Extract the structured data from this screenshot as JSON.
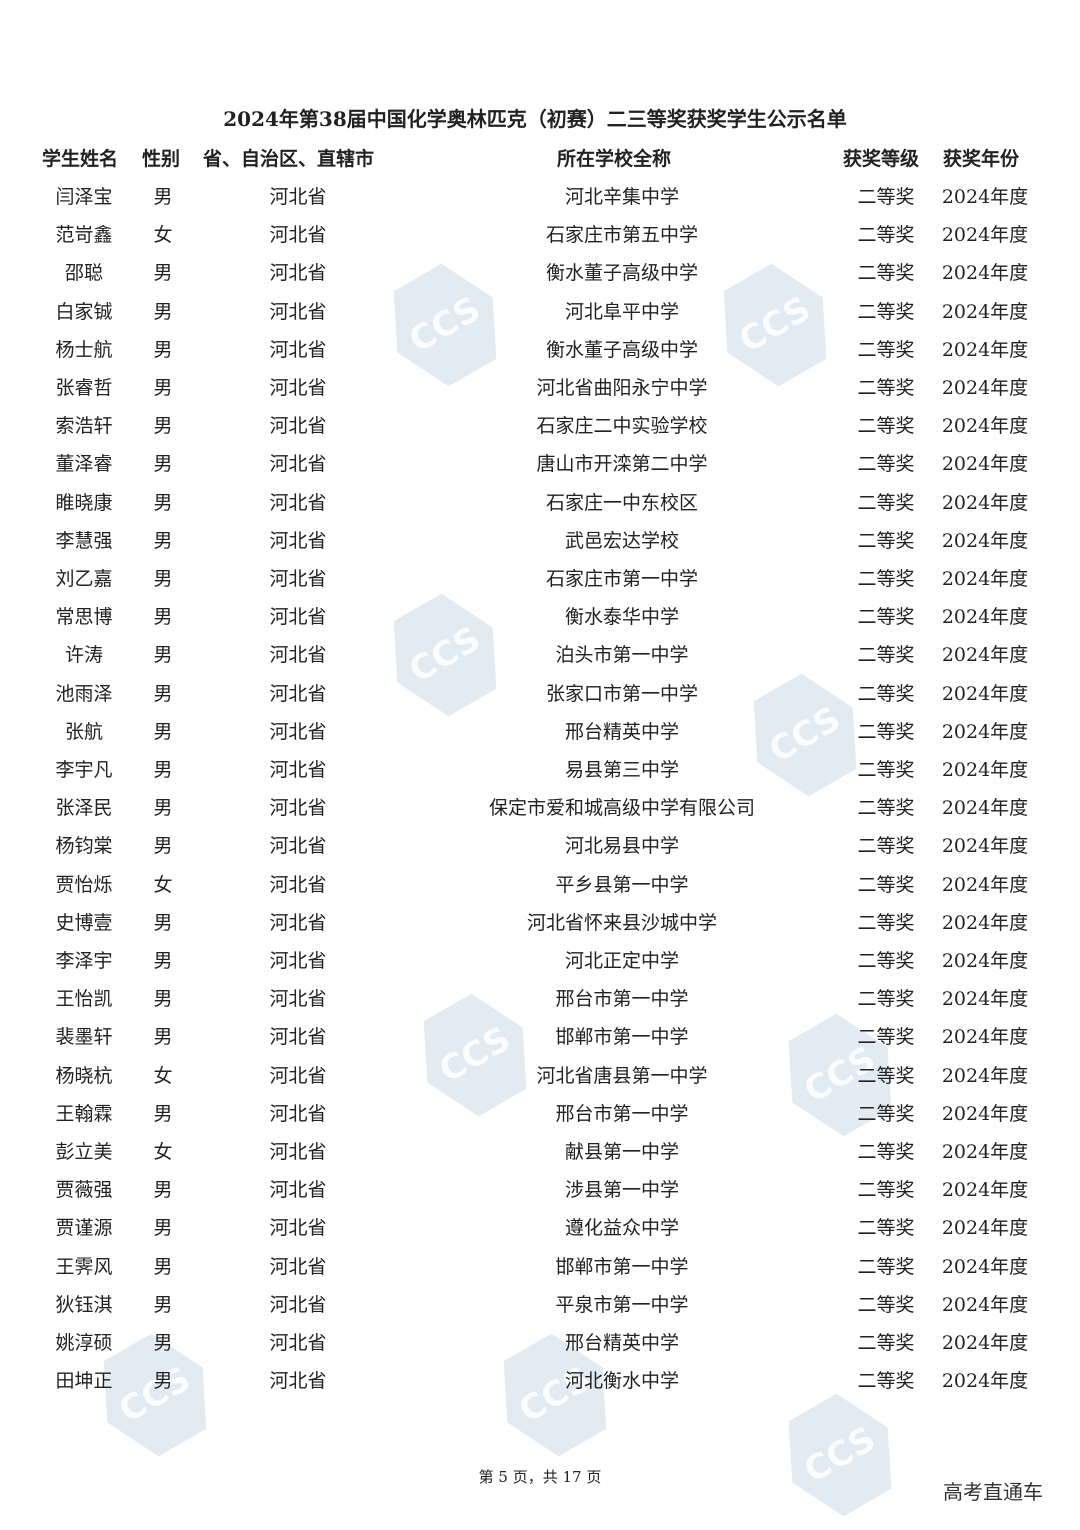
{
  "title": "2024年第38届中国化学奥林匹克（初赛）二三等奖获奖学生公示名单",
  "headers": [
    "学生姓名",
    "性别",
    "省、自治区、直辖市",
    "所在学校全称",
    "获奖等级",
    "获奖年份"
  ],
  "rows": [
    [
      "闫泽宝",
      "男",
      "河北省",
      "河北辛集中学",
      "二等奖",
      "2024年度"
    ],
    [
      "范岢鑫",
      "女",
      "河北省",
      "石家庄市第五中学",
      "二等奖",
      "2024年度"
    ],
    [
      "邵聪",
      "男",
      "河北省",
      "衡水董子高级中学",
      "二等奖",
      "2024年度"
    ],
    [
      "白家铖",
      "男",
      "河北省",
      "河北阜平中学",
      "二等奖",
      "2024年度"
    ],
    [
      "杨士航",
      "男",
      "河北省",
      "衡水董子高级中学",
      "二等奖",
      "2024年度"
    ],
    [
      "张睿哲",
      "男",
      "河北省",
      "河北省曲阳永宁中学",
      "二等奖",
      "2024年度"
    ],
    [
      "索浩轩",
      "男",
      "河北省",
      "石家庄二中实验学校",
      "二等奖",
      "2024年度"
    ],
    [
      "董泽睿",
      "男",
      "河北省",
      "唐山市开滦第二中学",
      "二等奖",
      "2024年度"
    ],
    [
      "睢晓康",
      "男",
      "河北省",
      "石家庄一中东校区",
      "二等奖",
      "2024年度"
    ],
    [
      "李慧强",
      "男",
      "河北省",
      "武邑宏达学校",
      "二等奖",
      "2024年度"
    ],
    [
      "刘乙嘉",
      "男",
      "河北省",
      "石家庄市第一中学",
      "二等奖",
      "2024年度"
    ],
    [
      "常思博",
      "男",
      "河北省",
      "衡水泰华中学",
      "二等奖",
      "2024年度"
    ],
    [
      "许涛",
      "男",
      "河北省",
      "泊头市第一中学",
      "二等奖",
      "2024年度"
    ],
    [
      "池雨泽",
      "男",
      "河北省",
      "张家口市第一中学",
      "二等奖",
      "2024年度"
    ],
    [
      "张航",
      "男",
      "河北省",
      "邢台精英中学",
      "二等奖",
      "2024年度"
    ],
    [
      "李宇凡",
      "男",
      "河北省",
      "易县第三中学",
      "二等奖",
      "2024年度"
    ],
    [
      "张泽民",
      "男",
      "河北省",
      "保定市爱和城高级中学有限公司",
      "二等奖",
      "2024年度"
    ],
    [
      "杨钧棠",
      "男",
      "河北省",
      "河北易县中学",
      "二等奖",
      "2024年度"
    ],
    [
      "贾怡烁",
      "女",
      "河北省",
      "平乡县第一中学",
      "二等奖",
      "2024年度"
    ],
    [
      "史博壹",
      "男",
      "河北省",
      "河北省怀来县沙城中学",
      "二等奖",
      "2024年度"
    ],
    [
      "李泽宇",
      "男",
      "河北省",
      "河北正定中学",
      "二等奖",
      "2024年度"
    ],
    [
      "王怡凯",
      "男",
      "河北省",
      "邢台市第一中学",
      "二等奖",
      "2024年度"
    ],
    [
      "裴墨轩",
      "男",
      "河北省",
      "邯郸市第一中学",
      "二等奖",
      "2024年度"
    ],
    [
      "杨晓杭",
      "女",
      "河北省",
      "河北省唐县第一中学",
      "二等奖",
      "2024年度"
    ],
    [
      "王翰霖",
      "男",
      "河北省",
      "邢台市第一中学",
      "二等奖",
      "2024年度"
    ],
    [
      "彭立美",
      "女",
      "河北省",
      "献县第一中学",
      "二等奖",
      "2024年度"
    ],
    [
      "贾薇强",
      "男",
      "河北省",
      "涉县第一中学",
      "二等奖",
      "2024年度"
    ],
    [
      "贾谨源",
      "男",
      "河北省",
      "遵化益众中学",
      "二等奖",
      "2024年度"
    ],
    [
      "王霁风",
      "男",
      "河北省",
      "邯郸市第一中学",
      "二等奖",
      "2024年度"
    ],
    [
      "狄钰淇",
      "男",
      "河北省",
      "平泉市第一中学",
      "二等奖",
      "2024年度"
    ],
    [
      "姚淳硕",
      "男",
      "河北省",
      "邢台精英中学",
      "二等奖",
      "2024年度"
    ],
    [
      "田坤正",
      "男",
      "河北省",
      "河北衡水中学",
      "二等奖",
      "2024年度"
    ]
  ],
  "footer": "第 5 页，共 17 页",
  "brand": "高考直通车",
  "watermark": "CCS 中国化学会 CHINESE CHEMICAL SOCIETY"
}
